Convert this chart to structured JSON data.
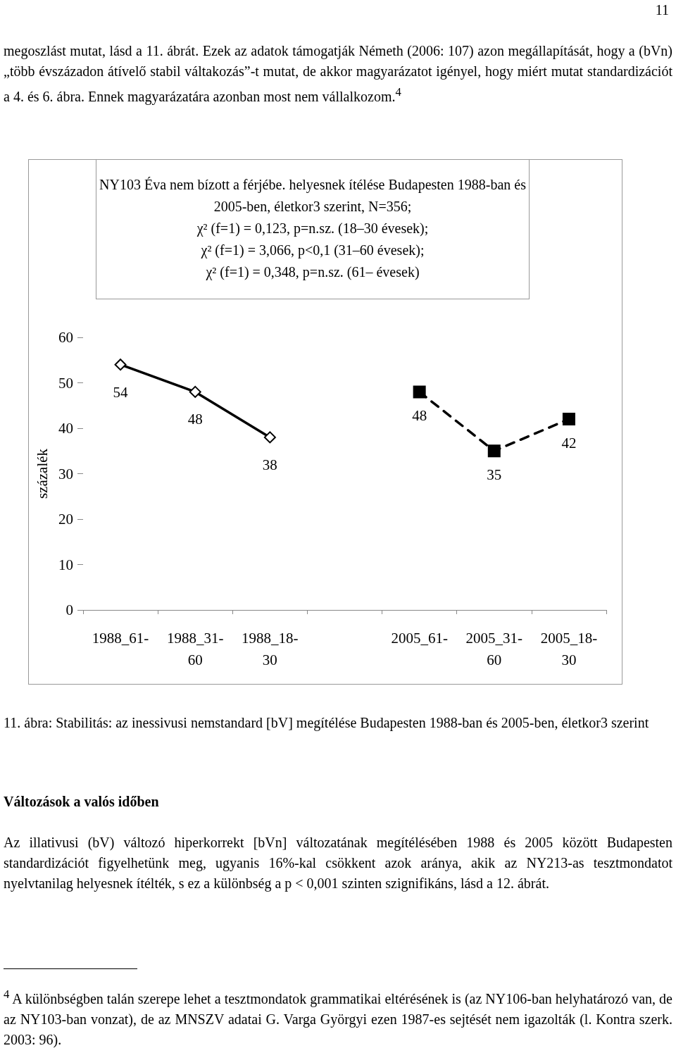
{
  "chart_data": {
    "type": "line",
    "title": "NY103 Éva nem bízott a férjébe. helyesnek ítélése Budapesten 1988-ban és 2005-ben, életkor3 szerint, N=356;",
    "subtitle": "χ² (f=1) = 0,123, p=n.sz. (18–30 évesek);\nχ² (f=1) = 3,066, p<0,1 (31–60 évesek);\nχ² (f=1) = 0,348, p=n.sz. (61– évesek)",
    "ylabel": "százalék",
    "categories": [
      "1988_61-",
      "1988_31-60",
      "1988_18-30",
      null,
      "2005_61-",
      "2005_31-60",
      "2005_18-30"
    ],
    "series": [
      {
        "color": "#000000",
        "marker": "diamond",
        "line_style": "solid",
        "values": [
          54,
          48,
          38,
          null,
          null,
          null,
          null
        ]
      },
      {
        "color": "#000000",
        "marker": "square",
        "line_style": "dashed",
        "values": [
          null,
          null,
          null,
          null,
          48,
          35,
          42
        ]
      }
    ],
    "ylim": [
      0,
      60
    ],
    "yticks": [
      0,
      10,
      20,
      30,
      40,
      50,
      60
    ],
    "data_labels": true,
    "grid": false,
    "annotations": [
      "11",
      "megoszlást mutat, lásd a 11. ábrát. Ezek az adatok támogatják Németh (2006: 107) azon megállapítását, hogy a (bVn) „több évszázadon átívelő stabil váltakozás”-t mutat, de akkor magyarázatot igényel, hogy miért mutat standardizációt a 4. és 6. ábra. Ennek magyarázatára azonban most nem vállalkozom.$^{4}$",
      "11. ábra: Stabilitás: az inessivusi nemstandard [bV] megítélése Budapesten 1988-ban és 2005-ben, életkor3 szerint",
      "Változások a valós időben",
      "Az illativusi (bV) változó hiperkorrekt [bVn] változatának megítélésében 1988 és 2005 között Budapesten standardizációt figyelhetünk meg, ugyanis 16%-kal csökkent azok aránya, akik az NY213-as tesztmondatot nyelvtanilag helyesnek ítélték, s ez a különbség a p < 0,001 szinten szignifikáns, lásd a 12. ábrát.",
      "$^{4}$ A különbségben talán szerepe lehet a tesztmondatok grammatikai eltérésének is (az NY106-ban helyhatározó van, de az NY103-ban vonzat), de az MNSZV adatai G. Varga Györgyi ezen 1987-es sejtését nem igazolták (l. Kontra szerk. 2003: 96)."
    ]
  }
}
